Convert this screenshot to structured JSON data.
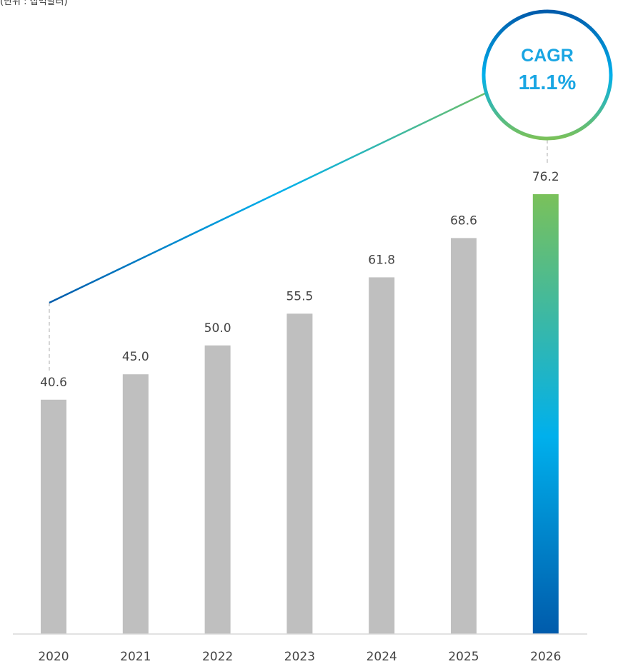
{
  "unit_label": "(단위 : 십억달러)",
  "colors": {
    "bar": "#bfbfbf",
    "highlight_top": "#7ac15a",
    "highlight_mid": "#00b0ec",
    "highlight_bottom": "#005bab",
    "axis": "#d9d9d9",
    "cagr_text": "#1aa6e3"
  },
  "chart_data": {
    "type": "bar",
    "categories": [
      "2020",
      "2021",
      "2022",
      "2023",
      "2024",
      "2025",
      "2026"
    ],
    "values": [
      40.6,
      45.0,
      50.0,
      55.5,
      61.8,
      68.6,
      76.2
    ],
    "value_labels": [
      "40.6",
      "45.0",
      "50.0",
      "55.5",
      "61.8",
      "68.6",
      "76.2"
    ],
    "highlight_category": "2026",
    "ylim": [
      0,
      85
    ],
    "title": "",
    "xlabel": "",
    "ylabel": "",
    "grid": false,
    "legend": "none",
    "annotation": {
      "title": "CAGR",
      "value": "11.1%",
      "from": "2020",
      "to": "2026"
    }
  }
}
